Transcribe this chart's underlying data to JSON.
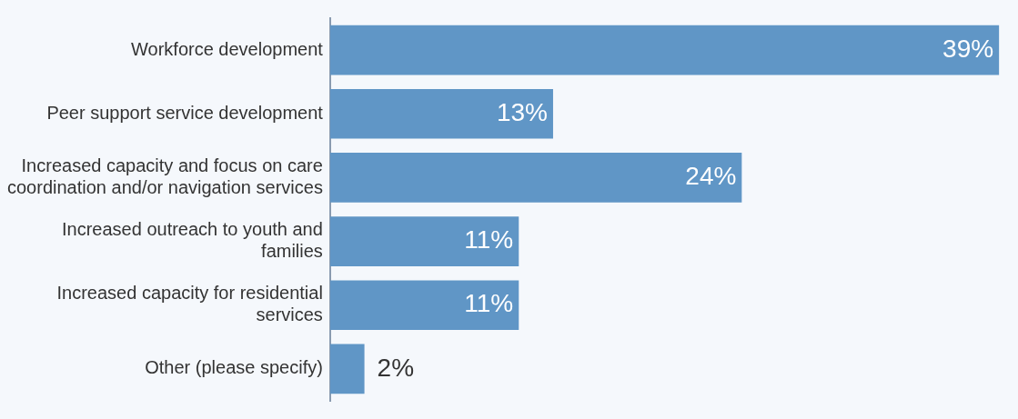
{
  "chart_data": {
    "type": "bar",
    "orientation": "horizontal",
    "categories": [
      "Workforce development",
      "Peer support service development",
      "Increased capacity and focus on care coordination and/or navigation services",
      "Increased outreach to youth and families",
      "Increased capacity for residential services",
      "Other (please specify)"
    ],
    "values": [
      39,
      13,
      24,
      11,
      11,
      2
    ],
    "value_labels": [
      "39%",
      "13%",
      "24%",
      "11%",
      "11%",
      "2%"
    ],
    "color": "#6096c6"
  }
}
